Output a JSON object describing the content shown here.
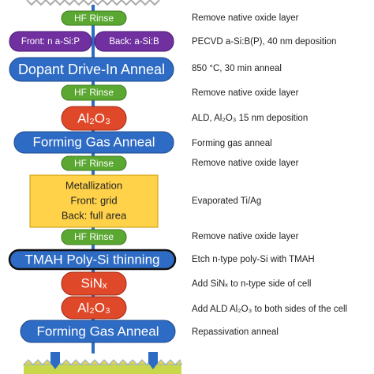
{
  "steps": [
    {
      "labels": [
        "HF Rinse"
      ],
      "description": "Remove native oxide layer"
    },
    {
      "labels": [
        "Front: n a-Si:P",
        "Back: a-Si:B"
      ],
      "description": "PECVD a-Si:B(P), 40 nm deposition"
    },
    {
      "labels": [
        "Dopant Drive-In Anneal"
      ],
      "description": "850 °C, 30 min anneal"
    },
    {
      "labels": [
        "HF Rinse"
      ],
      "description": "Remove native oxide layer"
    },
    {
      "labels": [
        "Al₂O₃"
      ],
      "description": "ALD, Al₂O₃ 15 nm deposition"
    },
    {
      "labels": [
        "Forming Gas Anneal"
      ],
      "description": "Forming gas anneal"
    },
    {
      "labels": [
        "HF Rinse"
      ],
      "description": "Remove native oxide layer"
    },
    {
      "labels": [
        "Metallization",
        "Front: grid",
        "Back: full area"
      ],
      "description": "Evaporated Ti/Ag"
    },
    {
      "labels": [
        "HF Rinse"
      ],
      "description": "Remove native oxide layer"
    },
    {
      "labels": [
        "TMAH Poly-Si thinning"
      ],
      "description": "Etch n-type poly-Si with TMAH"
    },
    {
      "labels": [
        "SiNₓ"
      ],
      "description": "Add SiNₓ to n-type side of cell"
    },
    {
      "labels": [
        "Al₂O₃"
      ],
      "description": "Add ALD Al₂O₃ to both sides of the cell"
    },
    {
      "labels": [
        "Forming Gas Anneal"
      ],
      "description": "Repassivation anneal"
    }
  ]
}
